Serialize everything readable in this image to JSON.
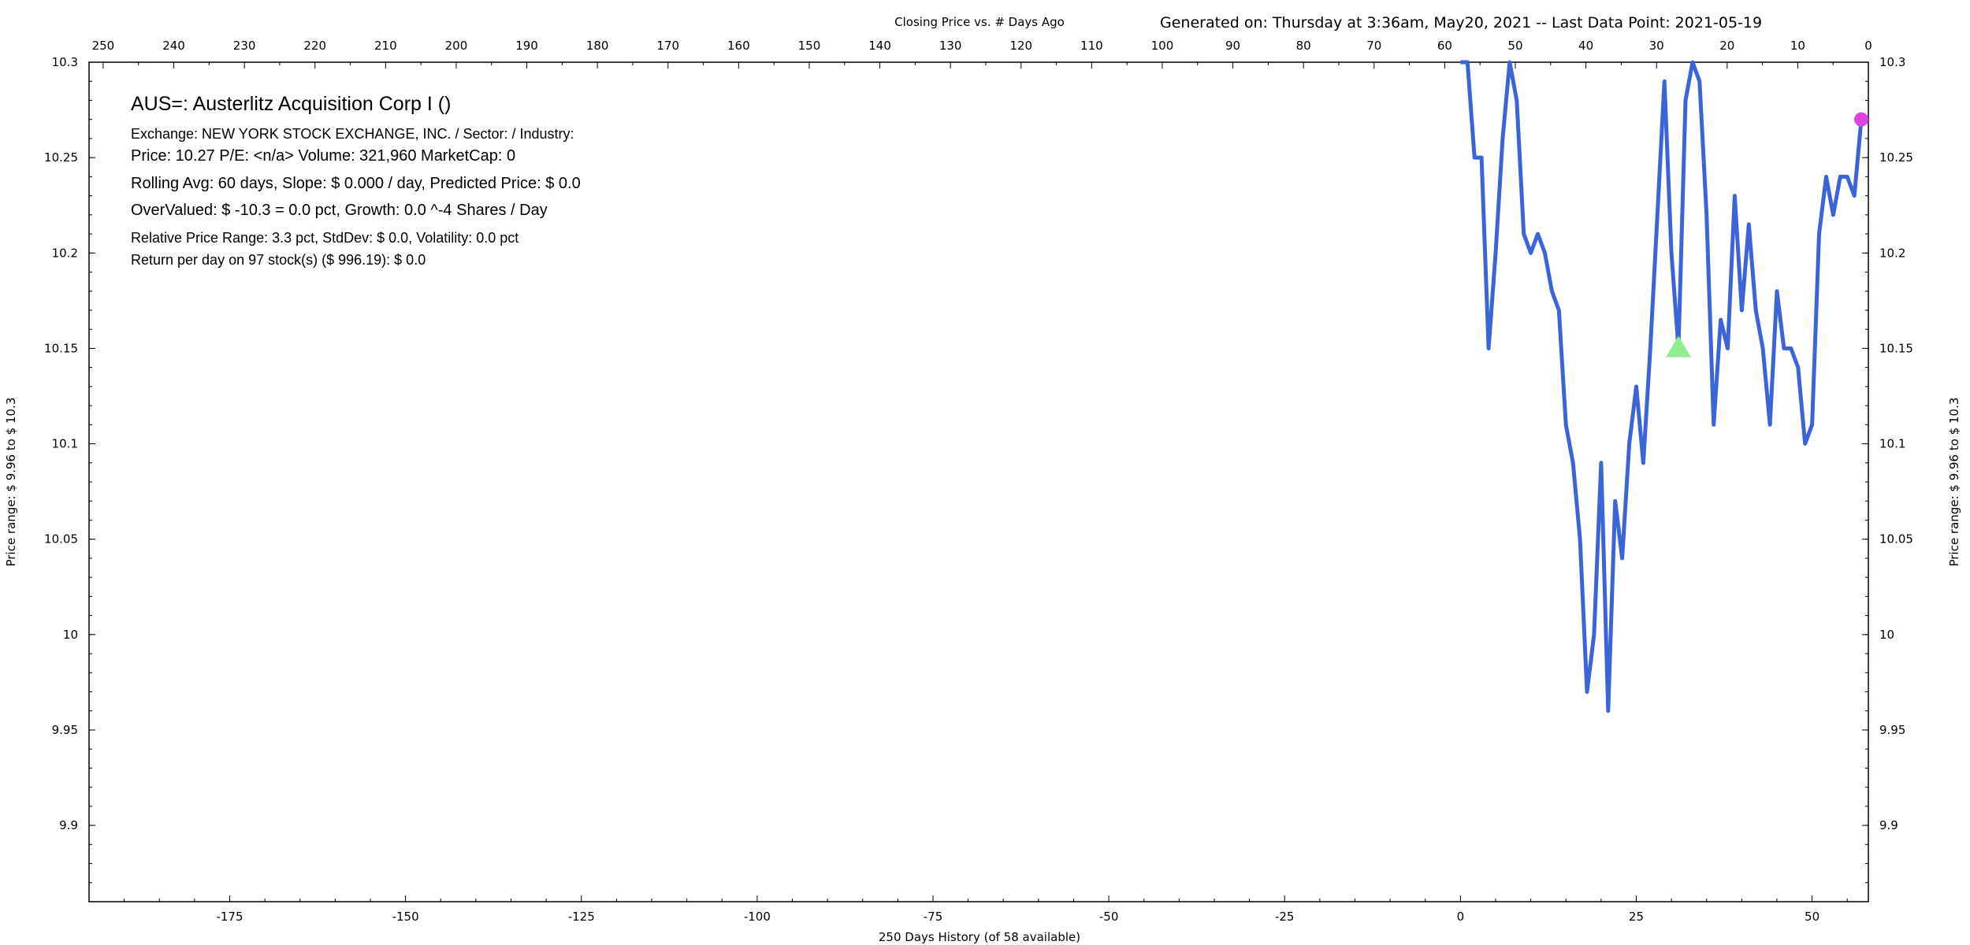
{
  "header": {
    "chart_title": "Closing Price vs. # Days Ago",
    "generated": "Generated on:  Thursday at  3:36am, May20, 2021  --  Last Data Point:  2021-05-19"
  },
  "info": {
    "title": "AUS=:  Austerlitz Acquisition Corp I  ()",
    "exchange": "Exchange: NEW YORK STOCK EXCHANGE, INC.  /  Sector:   /  Industry:",
    "price": "Price: 10.27  P/E: <n/a> Volume: 321,960  MarketCap: 0",
    "rolling": "Rolling Avg: 60 days, Slope: $ 0.000 / day, Predicted Price: $ 0.0",
    "overvalued": "OverValued: $ -10.3 = 0.0 pct,  Growth: 0.0 ^-4 Shares / Day",
    "range": "Relative Price Range: 3.3 pct, StdDev: $ 0.0, Volatility: 0.0 pct",
    "return": "Return per day on 97 stock(s) ($ 996.19): $ 0.0"
  },
  "colors": {
    "line": "#3a64d8",
    "current_marker": "#e040e0",
    "triangle_marker": "#90ee90"
  },
  "chart_data": {
    "type": "line",
    "xlabel": "250 Days History (of 58 available)",
    "ylabel_left": "Price range:  $ 9.96  to  $ 10.3",
    "ylabel_right": "Price range: $ 9.96  to  $ 10.3",
    "xlim": [
      -195,
      58
    ],
    "ylim": [
      9.86,
      10.3
    ],
    "x_ticks": [
      -175,
      -150,
      -125,
      -100,
      -75,
      -50,
      -25,
      0,
      25,
      50
    ],
    "x_tick_labels": [
      "-175",
      "-150",
      "-125",
      "-100",
      "-75",
      "-50",
      "-25",
      "0",
      "25",
      "50"
    ],
    "y_ticks": [
      9.9,
      9.95,
      10.0,
      10.05,
      10.1,
      10.15,
      10.2,
      10.25,
      10.3
    ],
    "y_tick_labels": [
      "9.9",
      "9.95",
      "10",
      "10.05",
      "10.1",
      "10.15",
      "10.2",
      "10.25",
      "10.3"
    ],
    "top_axis": {
      "label": "Closing Price vs. # Days Ago",
      "ticks": [
        250,
        240,
        230,
        220,
        210,
        200,
        190,
        180,
        170,
        160,
        150,
        140,
        130,
        120,
        110,
        100,
        90,
        80,
        70,
        60,
        50,
        40,
        30,
        20,
        10,
        0
      ]
    },
    "series": [
      {
        "x": [
          0,
          1,
          2,
          3,
          4,
          5,
          6,
          7,
          8,
          9,
          10,
          11,
          12,
          13,
          14,
          15,
          16,
          17,
          18,
          19,
          20,
          21,
          22,
          23,
          24,
          25,
          26,
          27,
          28,
          29,
          30,
          31,
          32,
          33,
          34,
          35,
          36,
          37,
          38,
          39,
          40,
          41,
          42,
          43,
          44,
          45,
          46,
          47,
          48,
          49,
          50,
          51,
          52,
          53,
          54,
          55,
          56,
          57
        ],
        "y": [
          10.3,
          10.3,
          10.25,
          10.25,
          10.15,
          10.2,
          10.26,
          10.3,
          10.28,
          10.21,
          10.2,
          10.21,
          10.2,
          10.18,
          10.17,
          10.11,
          10.09,
          10.05,
          9.97,
          10.0,
          10.09,
          9.96,
          10.07,
          10.04,
          10.1,
          10.13,
          10.09,
          10.15,
          10.22,
          10.29,
          10.2,
          10.15,
          10.28,
          10.3,
          10.29,
          10.22,
          10.11,
          10.165,
          10.15,
          10.23,
          10.17,
          10.215,
          10.17,
          10.15,
          10.11,
          10.18,
          10.15,
          10.15,
          10.14,
          10.1,
          10.11,
          10.21,
          10.24,
          10.22,
          10.24,
          10.24,
          10.23,
          10.27
        ]
      }
    ],
    "markers": [
      {
        "type": "triangle",
        "x": 31,
        "y": 10.15
      },
      {
        "type": "circle",
        "x": 57,
        "y": 10.27
      }
    ]
  }
}
